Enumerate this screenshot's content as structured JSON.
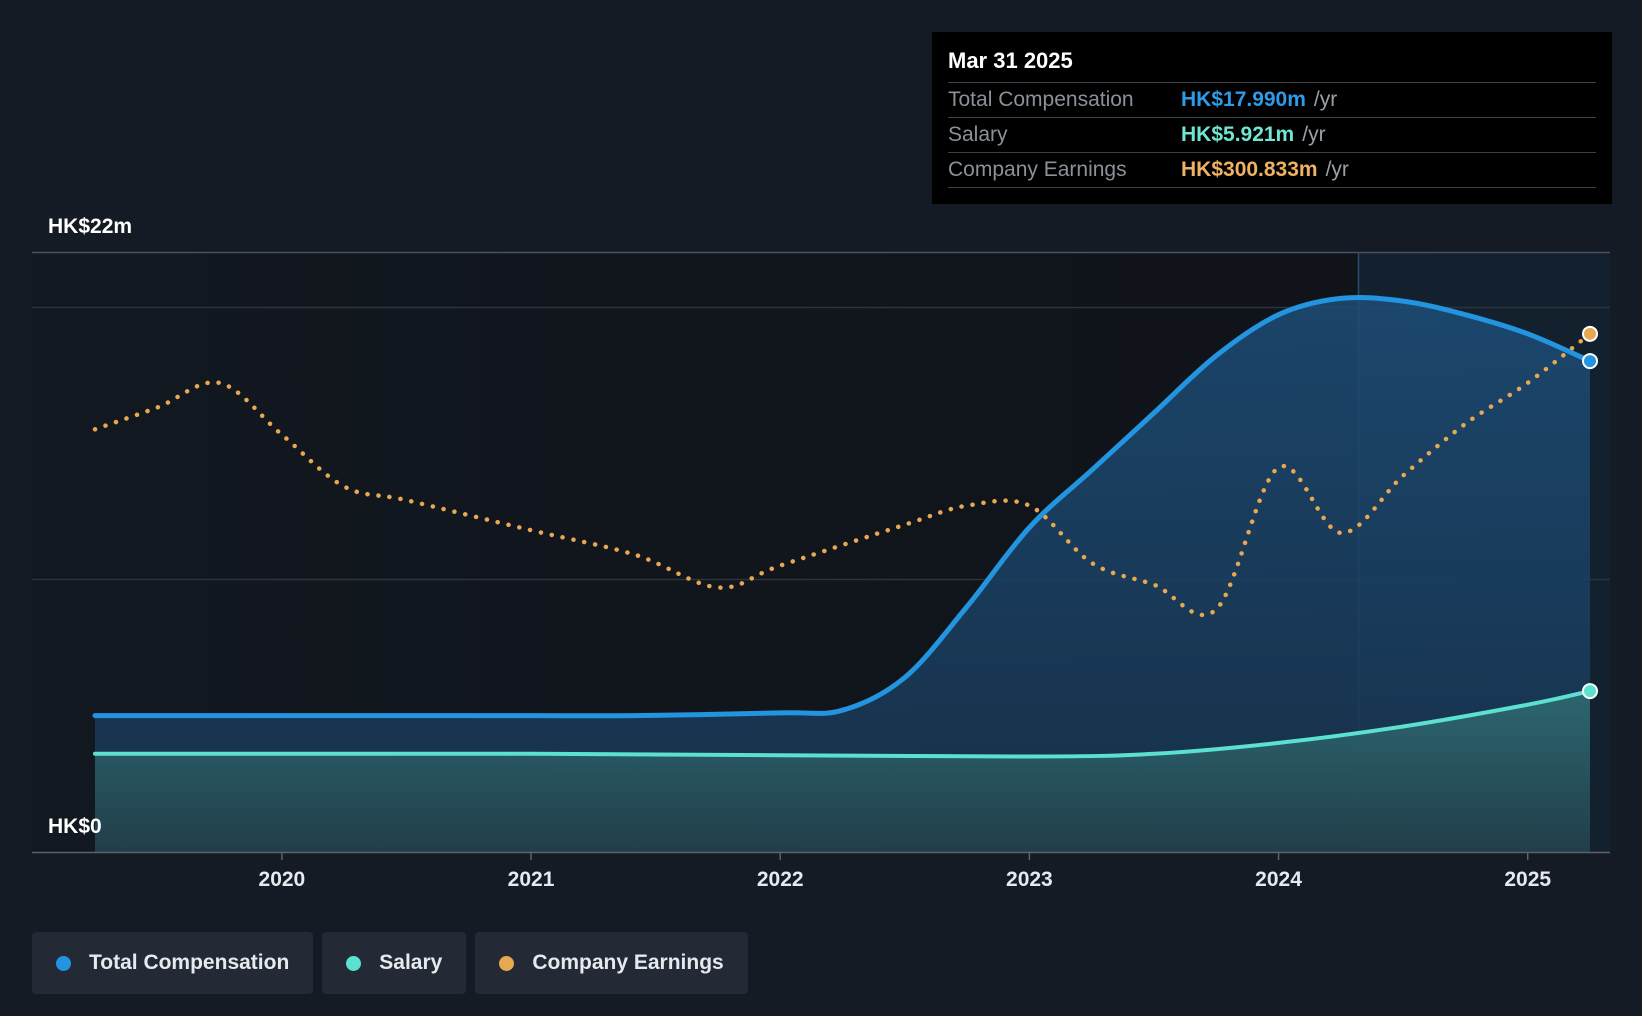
{
  "chart_data": {
    "type": "line",
    "title": "",
    "ylabel": "",
    "y_axis_labels": {
      "top": "HK$22m",
      "bottom": "HK$0"
    },
    "ylim": [
      0,
      22
    ],
    "x_ticks": [
      "2020",
      "2021",
      "2022",
      "2023",
      "2024",
      "2025"
    ],
    "xlim": [
      "2019-04",
      "2025-04"
    ],
    "grid": true,
    "legend_position": "bottom-left",
    "series": [
      {
        "name": "Total Compensation",
        "color": "#2394df",
        "style": "solid-area",
        "x": [
          "2019-04",
          "2020-01",
          "2021-01",
          "2021-06",
          "2022-01",
          "2022-04",
          "2022-07",
          "2022-10",
          "2023-01",
          "2023-04",
          "2023-07",
          "2023-10",
          "2024-01",
          "2024-04",
          "2024-07",
          "2024-10",
          "2025-01",
          "2025-04"
        ],
        "values": [
          5.0,
          5.0,
          5.0,
          5.0,
          5.1,
          5.2,
          6.4,
          9.0,
          11.9,
          14.0,
          16.1,
          18.2,
          19.7,
          20.3,
          20.2,
          19.7,
          19.0,
          18.0
        ]
      },
      {
        "name": "Salary",
        "color": "#5ce0cf",
        "style": "solid-area",
        "x": [
          "2019-04",
          "2020-01",
          "2021-01",
          "2022-01",
          "2023-01",
          "2023-07",
          "2024-01",
          "2024-07",
          "2025-01",
          "2025-04"
        ],
        "values": [
          3.6,
          3.6,
          3.6,
          3.55,
          3.5,
          3.6,
          4.0,
          4.6,
          5.4,
          5.9
        ]
      },
      {
        "name": "Company Earnings",
        "color": "#e8a852",
        "style": "dotted",
        "axis": "secondary",
        "x": [
          "2019-04",
          "2019-07",
          "2019-10",
          "2020-01",
          "2020-04",
          "2020-07",
          "2021-01",
          "2021-06",
          "2021-10",
          "2022-01",
          "2022-07",
          "2022-10",
          "2023-01",
          "2023-04",
          "2023-07",
          "2023-10",
          "2024-01",
          "2024-04",
          "2024-07",
          "2024-10",
          "2025-01",
          "2025-04"
        ],
        "values": [
          15.5,
          16.3,
          17.2,
          15.3,
          13.4,
          12.9,
          11.8,
          10.9,
          9.7,
          10.5,
          12.0,
          12.7,
          12.7,
          10.6,
          9.8,
          8.9,
          14.1,
          11.7,
          13.8,
          15.7,
          17.2,
          19.0
        ]
      }
    ]
  },
  "tooltip": {
    "date": "Mar 31 2025",
    "rows": [
      {
        "label": "Total Compensation",
        "value": "HK$17.990m",
        "unit": "/yr",
        "color": "#2e9be8"
      },
      {
        "label": "Salary",
        "value": "HK$5.921m",
        "unit": "/yr",
        "color": "#6fe6d3"
      },
      {
        "label": "Company Earnings",
        "value": "HK$300.833m",
        "unit": "/yr",
        "color": "#efb262"
      }
    ]
  },
  "legend": [
    {
      "label": "Total Compensation",
      "color": "#2394df"
    },
    {
      "label": "Salary",
      "color": "#5ce0cf"
    },
    {
      "label": "Company Earnings",
      "color": "#e8a852"
    }
  ]
}
